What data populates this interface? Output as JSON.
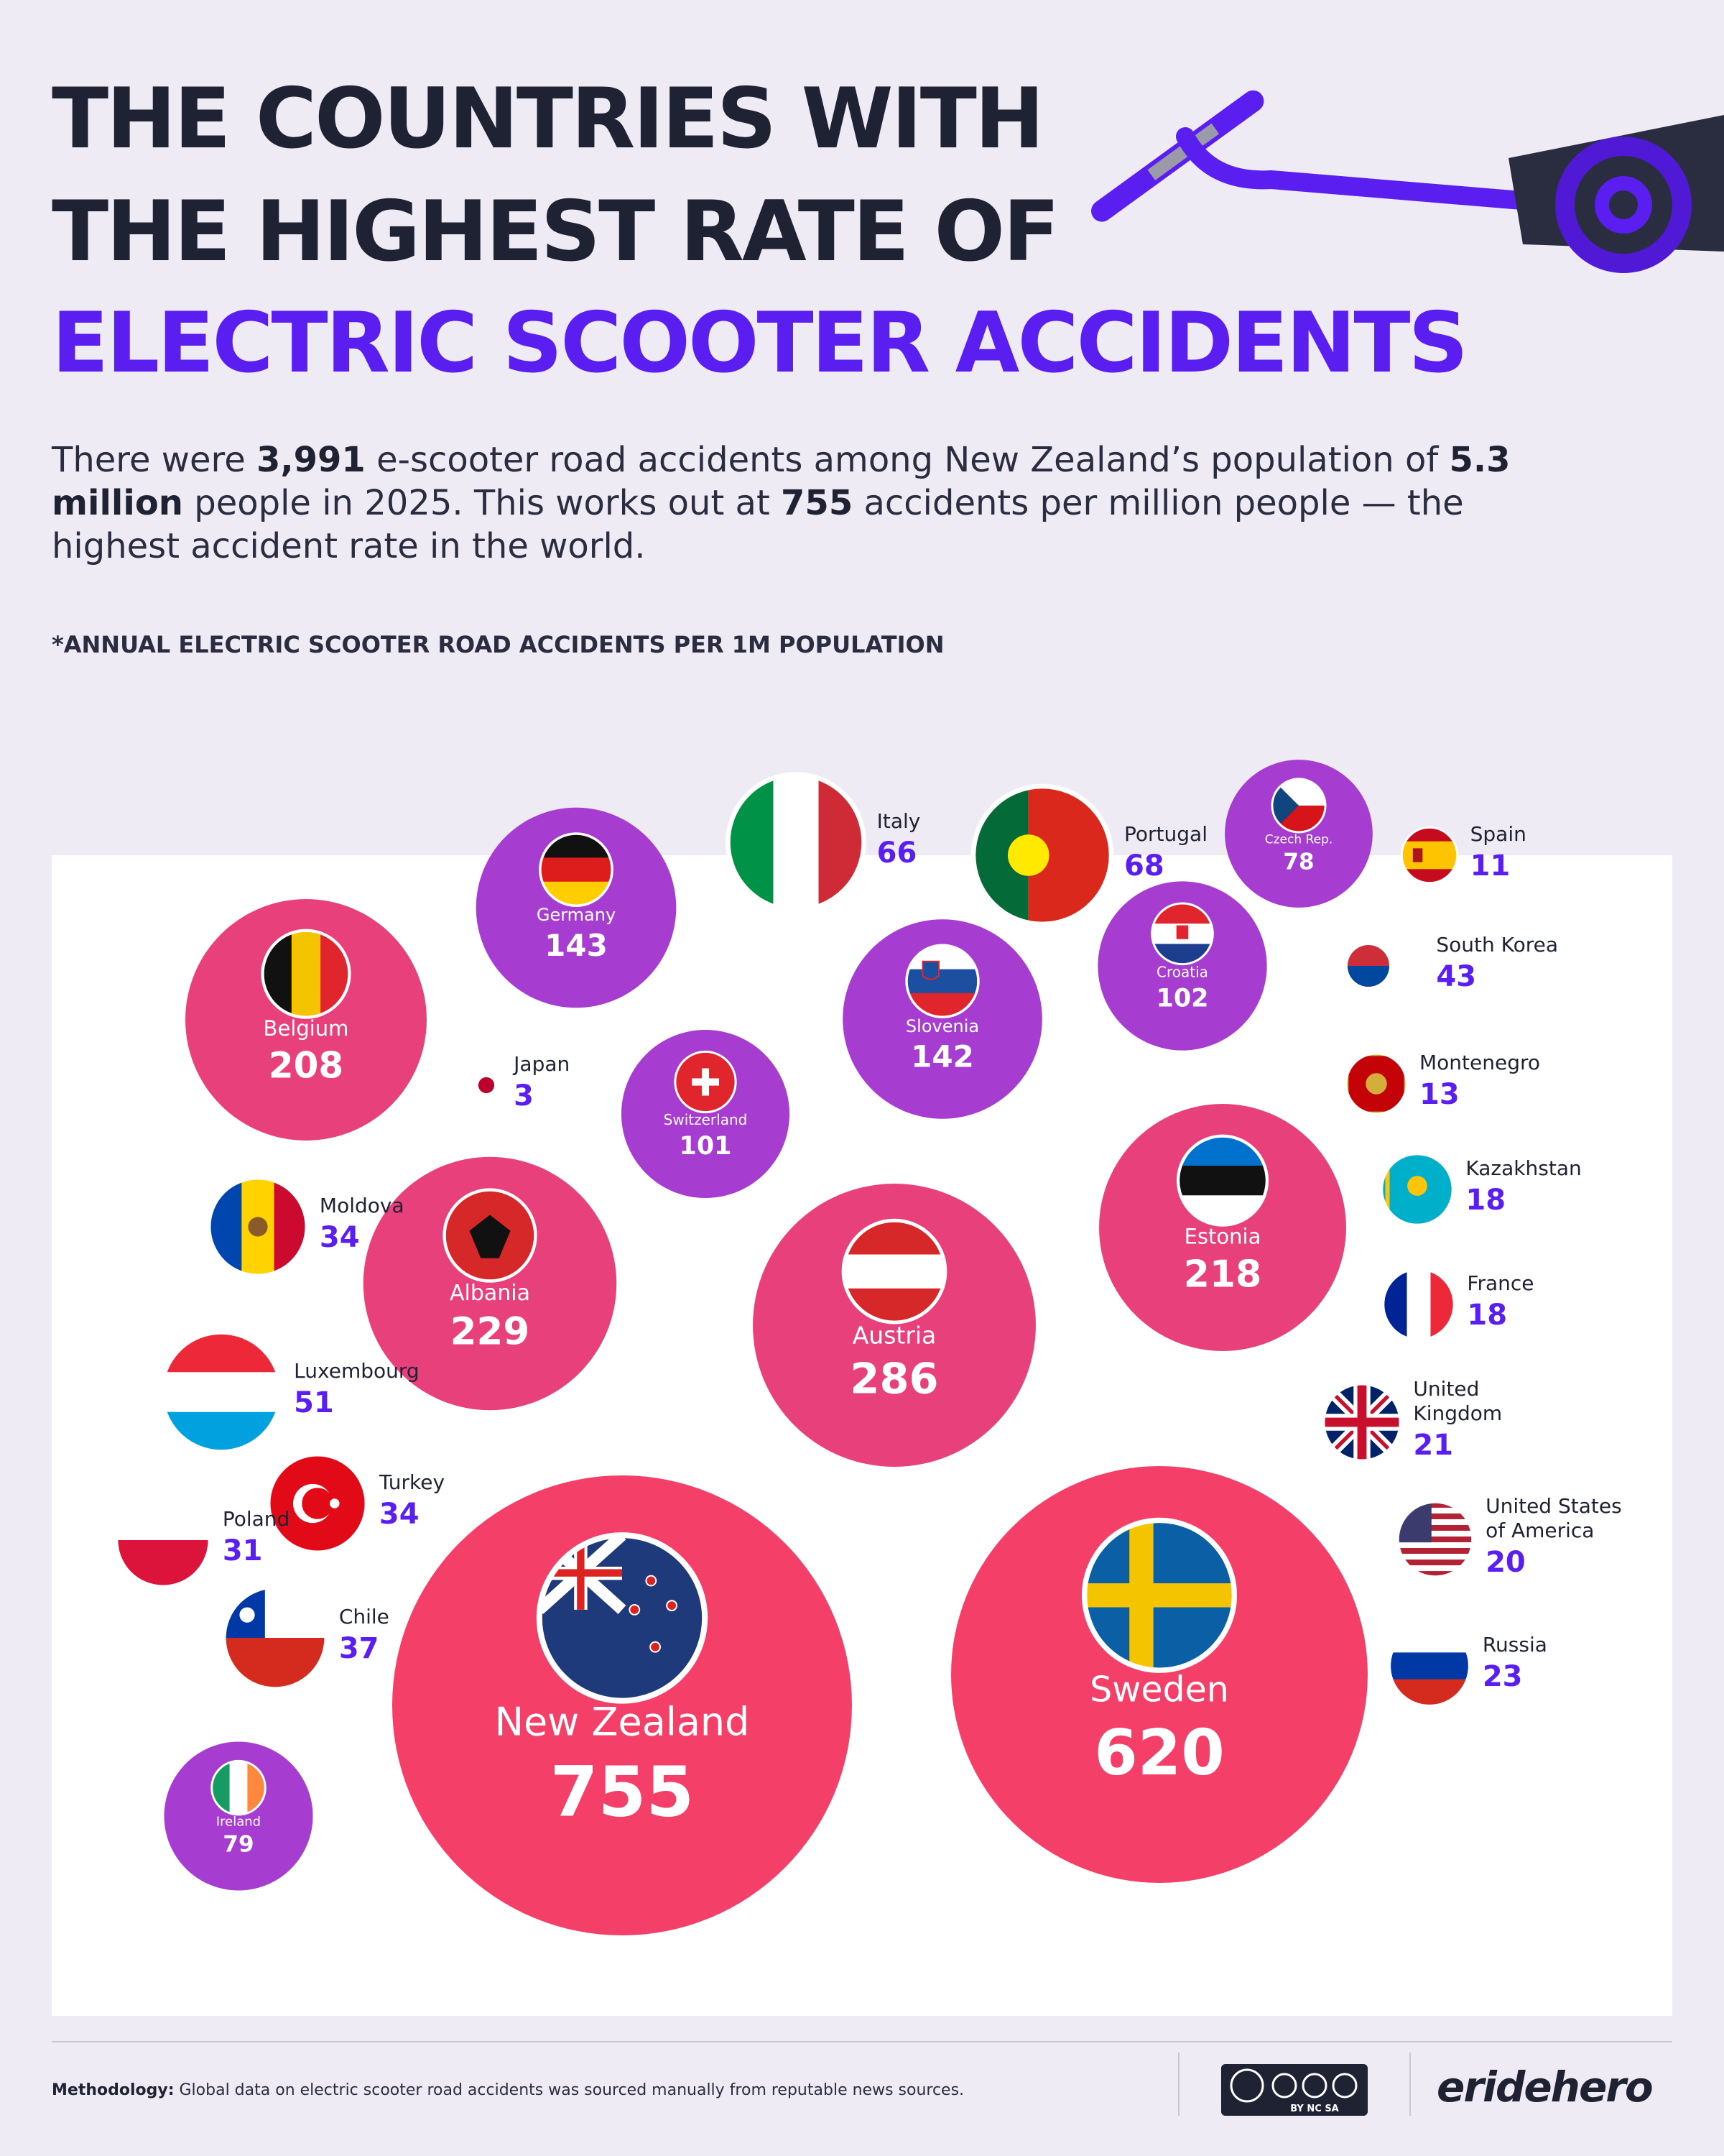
{
  "header": {
    "title_line1": "THE COUNTRIES WITH",
    "title_line2": "THE HIGHEST RATE OF",
    "title_line3": "ELECTRIC SCOOTER ACCIDENTS"
  },
  "intro": {
    "p1": "There were ",
    "b1": "3,991",
    "p2": " e-scooter road accidents among New Zealand’s population of ",
    "b2": "5.3 million",
    "p3": " people in 2025. This works out at ",
    "b3": "755",
    "p4": " accidents per million people — the highest accident rate in the world."
  },
  "note": "*ANNUAL ELECTRIC SCOOTER ROAD ACCIDENTS PER 1M POPULATION",
  "footer": {
    "methodology_label": "Methodology:",
    "methodology_text": " Global data on electric scooter road accidents was sourced manually from reputable news sources.",
    "license_text": "BY NC SA",
    "brand": "eridehero"
  },
  "colors": {
    "title_dark": "#1f2233",
    "title_accent": "#5a1ff0",
    "bubble_small": "#5a1ff0",
    "bubble_mid": "#a63dd0",
    "bubble_large": "#e8407a",
    "bubble_top": "#f43f68"
  },
  "chart_data": {
    "type": "bubble",
    "title": "THE COUNTRIES WITH THE HIGHEST RATE OF ELECTRIC SCOOTER ACCIDENTS",
    "measure": "*ANNUAL ELECTRIC SCOOTER ROAD ACCIDENTS PER 1M POPULATION",
    "points": [
      {
        "country": "New Zealand",
        "value": 755,
        "flag": "nz"
      },
      {
        "country": "Sweden",
        "value": 620,
        "flag": "se"
      },
      {
        "country": "Austria",
        "value": 286,
        "flag": "at"
      },
      {
        "country": "Albania",
        "value": 229,
        "flag": "al"
      },
      {
        "country": "Estonia",
        "value": 218,
        "flag": "ee"
      },
      {
        "country": "Belgium",
        "value": 208,
        "flag": "be"
      },
      {
        "country": "Germany",
        "value": 143,
        "flag": "de"
      },
      {
        "country": "Slovenia",
        "value": 142,
        "flag": "si"
      },
      {
        "country": "Croatia",
        "value": 102,
        "flag": "hr"
      },
      {
        "country": "Switzerland",
        "value": 101,
        "flag": "ch"
      },
      {
        "country": "Ireland",
        "value": 79,
        "flag": "ie"
      },
      {
        "country": "Czech Rep.",
        "value": 78,
        "flag": "cz"
      },
      {
        "country": "Portugal",
        "value": 68,
        "flag": "pt"
      },
      {
        "country": "Italy",
        "value": 66,
        "flag": "it"
      },
      {
        "country": "Luxembourg",
        "value": 51,
        "flag": "lu"
      },
      {
        "country": "South Korea",
        "value": 43,
        "flag": "kr"
      },
      {
        "country": "Chile",
        "value": 37,
        "flag": "cl"
      },
      {
        "country": "Moldova",
        "value": 34,
        "flag": "md"
      },
      {
        "country": "Turkey",
        "value": 34,
        "flag": "tr"
      },
      {
        "country": "Poland",
        "value": 31,
        "flag": "pl"
      },
      {
        "country": "Russia",
        "value": 23,
        "flag": "ru"
      },
      {
        "country": "United Kingdom",
        "value": 21,
        "flag": "gb"
      },
      {
        "country": "United States of America",
        "value": 20,
        "flag": "us"
      },
      {
        "country": "Kazakhstan",
        "value": 18,
        "flag": "kz"
      },
      {
        "country": "France",
        "value": 18,
        "flag": "fr"
      },
      {
        "country": "Montenegro",
        "value": 13,
        "flag": "me"
      },
      {
        "country": "Spain",
        "value": 11,
        "flag": "es"
      },
      {
        "country": "Japan",
        "value": 3,
        "flag": "jp"
      }
    ]
  }
}
